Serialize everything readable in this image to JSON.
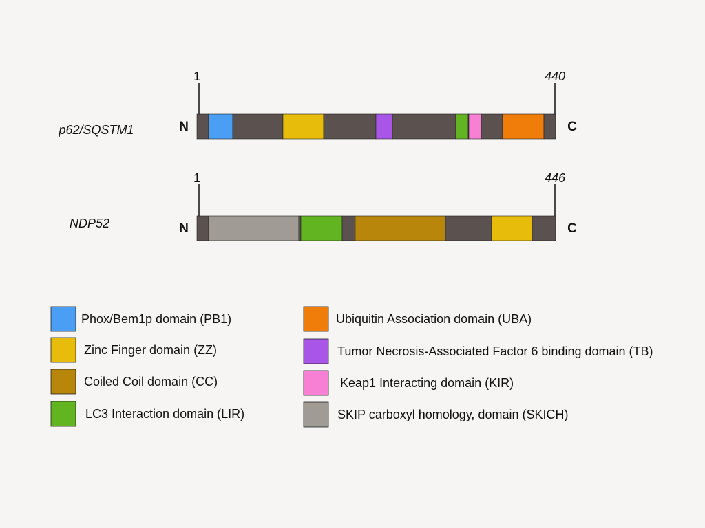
{
  "proteins": [
    {
      "name": "p62/SQSTM1",
      "start": 1,
      "end": 440,
      "n_label": "N",
      "c_label": "C"
    },
    {
      "name": "NDP52",
      "start": 1,
      "end": 446,
      "n_label": "N",
      "c_label": "C"
    }
  ],
  "legend": [
    {
      "label": "Phox/Bem1p domain (PB1)"
    },
    {
      "label": "Zinc Finger domain (ZZ)"
    },
    {
      "label": "Coiled Coil domain (CC)"
    },
    {
      "label": "LC3 Interaction domain (LIR)"
    },
    {
      "label": "Ubiquitin Association domain (UBA)"
    },
    {
      "label": "Tumor Necrosis-Associated Factor 6 binding domain (TB)"
    },
    {
      "label": "Keap1 Interacting domain (KIR)"
    },
    {
      "label": "SKIP carboxyl homology, domain (SKICH)"
    }
  ]
}
